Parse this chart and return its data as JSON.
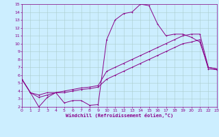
{
  "xlabel": "Windchill (Refroidissement éolien,°C)",
  "bg_color": "#cceeff",
  "grid_color": "#aacccc",
  "line_color": "#880088",
  "xlim": [
    0,
    23
  ],
  "ylim": [
    2,
    15
  ],
  "xticks": [
    0,
    1,
    2,
    3,
    4,
    5,
    6,
    7,
    8,
    9,
    10,
    11,
    12,
    13,
    14,
    15,
    16,
    17,
    18,
    19,
    20,
    21,
    22,
    23
  ],
  "yticks": [
    2,
    3,
    4,
    5,
    6,
    7,
    8,
    9,
    10,
    11,
    12,
    13,
    14,
    15
  ],
  "line1_x": [
    0,
    1,
    2,
    3,
    4,
    5,
    6,
    7,
    8,
    9,
    10,
    11,
    12,
    13,
    14,
    15,
    16,
    17,
    18,
    19,
    20,
    21,
    22,
    23
  ],
  "line1_y": [
    5.5,
    3.8,
    2.0,
    3.2,
    3.8,
    2.5,
    2.8,
    2.8,
    2.2,
    2.3,
    10.5,
    13.0,
    13.8,
    14.0,
    15.0,
    14.8,
    12.5,
    11.0,
    11.2,
    11.2,
    10.8,
    10.2,
    7.0,
    6.8
  ],
  "line2_x": [
    0,
    1,
    2,
    3,
    4,
    5,
    6,
    7,
    8,
    9,
    10,
    11,
    12,
    13,
    14,
    15,
    16,
    17,
    18,
    19,
    20,
    21,
    22,
    23
  ],
  "line2_y": [
    5.5,
    3.8,
    3.5,
    3.8,
    3.8,
    4.0,
    4.2,
    4.4,
    4.5,
    4.7,
    6.5,
    7.0,
    7.5,
    8.0,
    8.5,
    9.0,
    9.5,
    10.0,
    10.5,
    11.0,
    11.2,
    11.2,
    7.0,
    6.8
  ],
  "line3_x": [
    0,
    1,
    2,
    3,
    4,
    5,
    6,
    7,
    8,
    9,
    10,
    11,
    12,
    13,
    14,
    15,
    16,
    17,
    18,
    19,
    20,
    21,
    22,
    23
  ],
  "line3_y": [
    5.5,
    3.8,
    3.2,
    3.5,
    3.8,
    3.8,
    4.0,
    4.2,
    4.3,
    4.5,
    5.5,
    6.0,
    6.5,
    7.0,
    7.5,
    8.0,
    8.5,
    9.0,
    9.5,
    10.0,
    10.2,
    10.5,
    6.8,
    6.7
  ]
}
